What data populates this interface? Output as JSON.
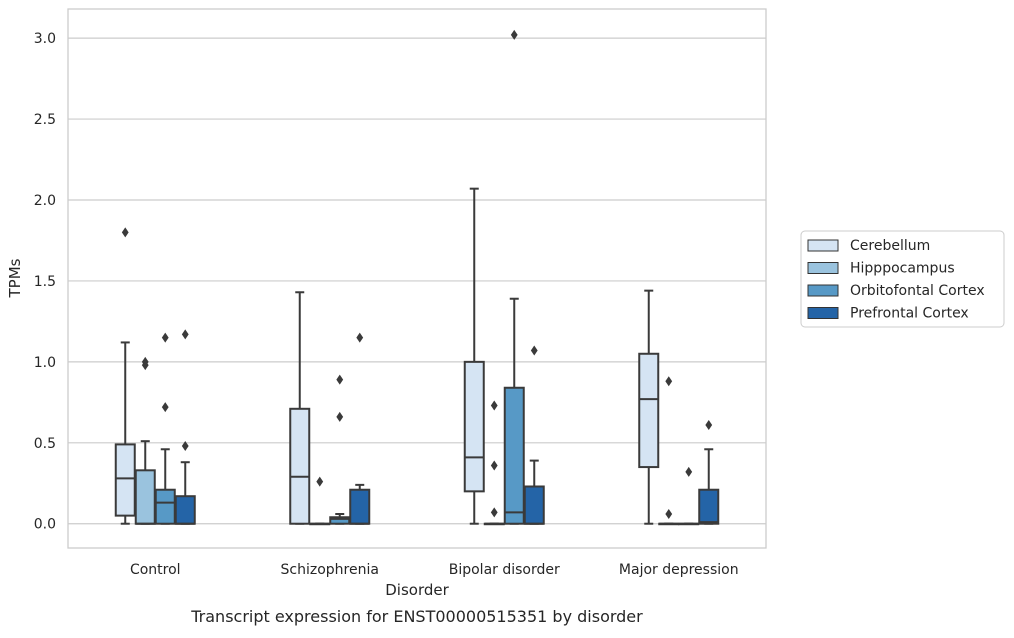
{
  "chart_data": {
    "type": "box",
    "caption": "Transcript expression for ENST00000515351 by disorder",
    "xlabel": "Disorder",
    "ylabel": "TPMs",
    "ylim": [
      -0.15,
      3.18
    ],
    "yticks": [
      0.0,
      0.5,
      1.0,
      1.5,
      2.0,
      2.5,
      3.0
    ],
    "ytick_labels": [
      "0.0",
      "0.5",
      "1.0",
      "1.5",
      "2.0",
      "2.5",
      "3.0"
    ],
    "grid": "horizontal",
    "legend_position": "right",
    "categories": [
      "Control",
      "Schizophrenia",
      "Bipolar disorder",
      "Major depression"
    ],
    "series": [
      {
        "name": "Cerebellum",
        "color": "#d5e4f3",
        "boxes": [
          {
            "whislo": 0.0,
            "q1": 0.05,
            "med": 0.28,
            "q3": 0.49,
            "whishi": 1.12,
            "fliers": [
              1.8
            ]
          },
          {
            "whislo": 0.0,
            "q1": 0.0,
            "med": 0.29,
            "q3": 0.71,
            "whishi": 1.43,
            "fliers": []
          },
          {
            "whislo": 0.0,
            "q1": 0.2,
            "med": 0.41,
            "q3": 1.0,
            "whishi": 2.07,
            "fliers": []
          },
          {
            "whislo": 0.0,
            "q1": 0.35,
            "med": 0.77,
            "q3": 1.05,
            "whishi": 1.44,
            "fliers": []
          }
        ]
      },
      {
        "name": "Hipppocampus",
        "color": "#9ac3de",
        "boxes": [
          {
            "whislo": 0.0,
            "q1": 0.0,
            "med": 0.0,
            "q3": 0.33,
            "whishi": 0.51,
            "fliers": [
              0.98,
              1.0
            ]
          },
          {
            "whislo": 0.0,
            "q1": 0.0,
            "med": 0.0,
            "q3": 0.0,
            "whishi": 0.0,
            "fliers": [
              0.26
            ]
          },
          {
            "whislo": 0.0,
            "q1": 0.0,
            "med": 0.0,
            "q3": 0.0,
            "whishi": 0.0,
            "fliers": [
              0.07,
              0.36,
              0.73
            ]
          },
          {
            "whislo": 0.0,
            "q1": 0.0,
            "med": 0.0,
            "q3": 0.0,
            "whishi": 0.0,
            "fliers": [
              0.06,
              0.88
            ]
          }
        ]
      },
      {
        "name": "Orbitofontal Cortex",
        "color": "#5799c6",
        "boxes": [
          {
            "whislo": 0.0,
            "q1": 0.0,
            "med": 0.13,
            "q3": 0.21,
            "whishi": 0.46,
            "fliers": [
              0.72,
              1.15
            ]
          },
          {
            "whislo": 0.0,
            "q1": 0.0,
            "med": 0.03,
            "q3": 0.04,
            "whishi": 0.06,
            "fliers": [
              0.66,
              0.89
            ]
          },
          {
            "whislo": 0.0,
            "q1": 0.0,
            "med": 0.07,
            "q3": 0.84,
            "whishi": 1.39,
            "fliers": [
              3.02
            ]
          },
          {
            "whislo": 0.0,
            "q1": 0.0,
            "med": 0.0,
            "q3": 0.0,
            "whishi": 0.0,
            "fliers": [
              0.32
            ]
          }
        ]
      },
      {
        "name": "Prefrontal Cortex",
        "color": "#2464a7",
        "boxes": [
          {
            "whislo": 0.0,
            "q1": 0.0,
            "med": 0.0,
            "q3": 0.17,
            "whishi": 0.38,
            "fliers": [
              0.48,
              1.17
            ]
          },
          {
            "whislo": 0.0,
            "q1": 0.0,
            "med": 0.0,
            "q3": 0.21,
            "whishi": 0.24,
            "fliers": [
              1.15
            ]
          },
          {
            "whislo": 0.0,
            "q1": 0.0,
            "med": 0.0,
            "q3": 0.23,
            "whishi": 0.39,
            "fliers": [
              1.07
            ]
          },
          {
            "whislo": 0.0,
            "q1": 0.0,
            "med": 0.01,
            "q3": 0.21,
            "whishi": 0.46,
            "fliers": [
              0.61
            ]
          }
        ]
      }
    ]
  }
}
